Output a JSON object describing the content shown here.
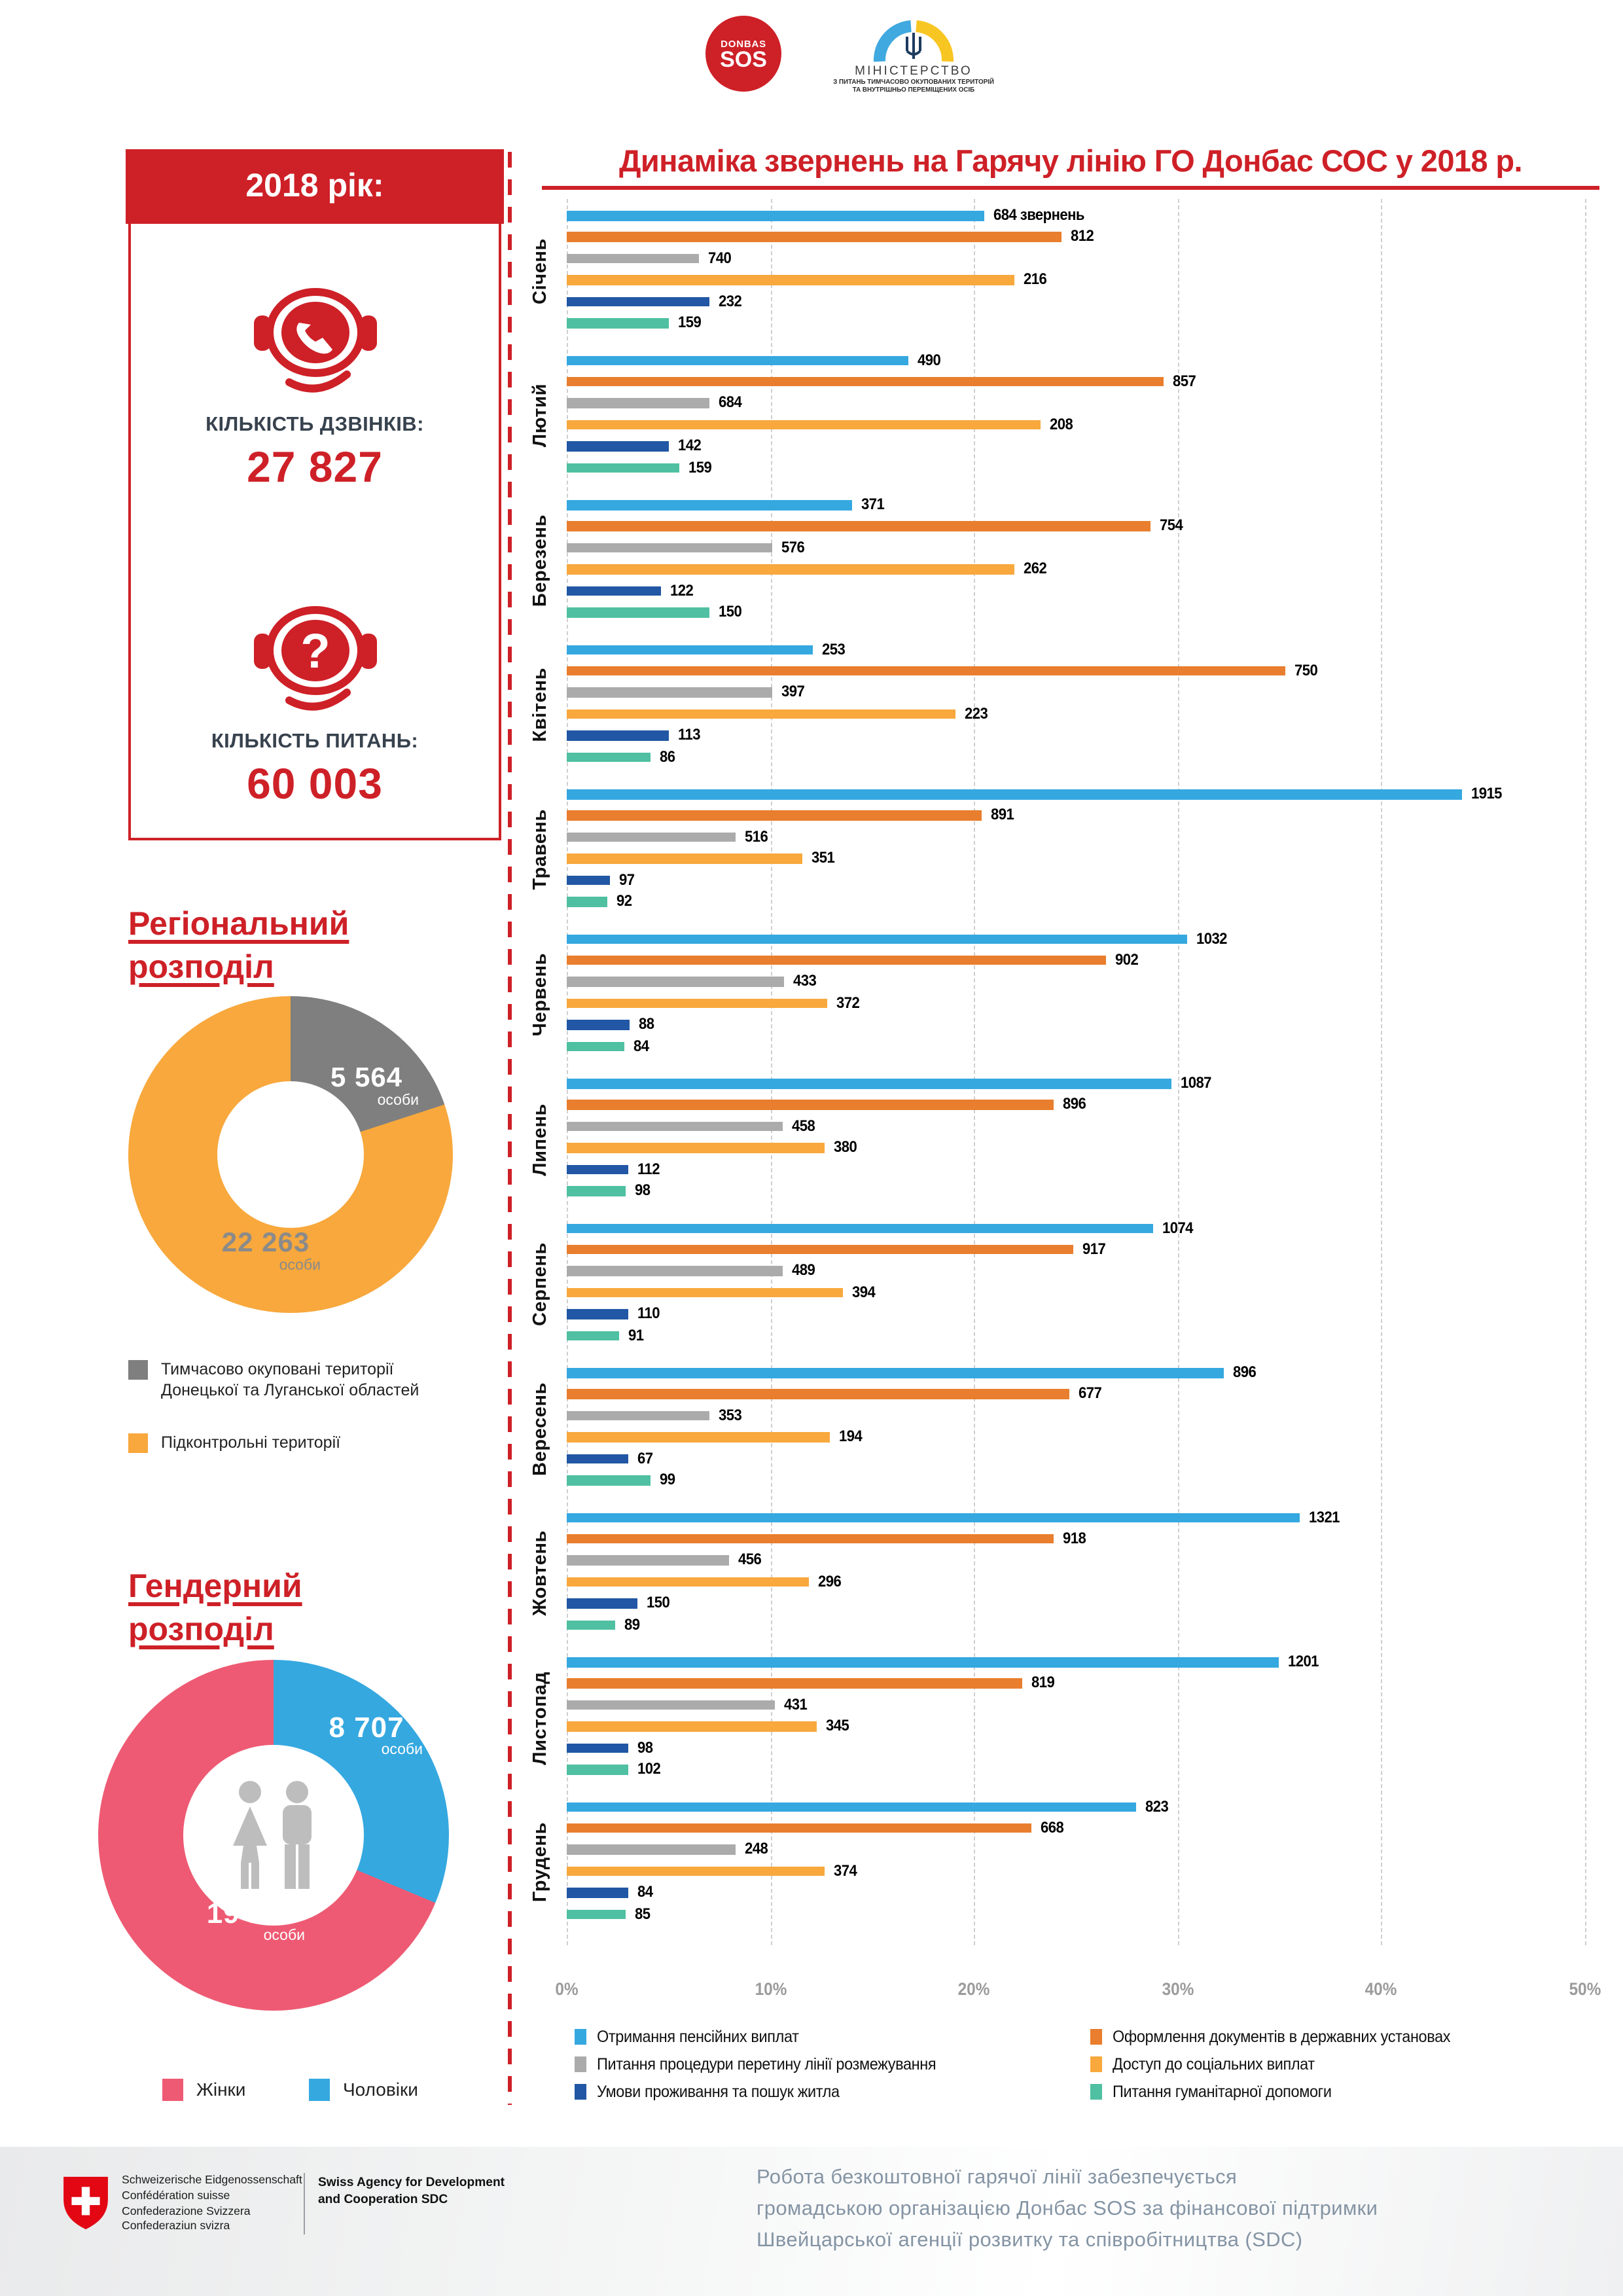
{
  "header": {
    "donbas_logo": {
      "top": "DONBAS",
      "bottom": "SOS"
    },
    "ministry_logo": {
      "line1": "МІНІСТЕРСТВО",
      "line2": "З ПИТАНЬ ТИМЧАСОВО ОКУПОВАНИХ ТЕРИТОРІЙ",
      "line3": "ТА ВНУТРІШНЬО ПЕРЕМІЩЕНИХ ОСІБ"
    }
  },
  "stats": {
    "box_title": "2018 рік:",
    "calls_label": "КІЛЬКІСТЬ ДЗВІНКІВ:",
    "calls_value": "27 827",
    "questions_label": "КІЛЬКІСТЬ ПИТАНЬ:",
    "questions_value": "60 003"
  },
  "chart_data": [
    {
      "type": "bar",
      "orientation": "horizontal",
      "title": "Динаміка звернень на Гарячу лінію ГО Донбас СОС у 2018 р.",
      "x_axis": {
        "unit": "%",
        "range": [
          0,
          50
        ],
        "ticks": [
          "0%",
          "10%",
          "20%",
          "30%",
          "40%",
          "50%"
        ],
        "gridlines": "dashed"
      },
      "first_bar_value_suffix": "звернень",
      "series": [
        {
          "name": "Отримання пенсійних виплат",
          "color": "#35A8E0"
        },
        {
          "name": "Оформлення документів в державних установах",
          "color": "#E87E2E"
        },
        {
          "name": "Питання процедури перетину лінії розмежування",
          "color": "#ABABAB"
        },
        {
          "name": "Доступ до соціальних виплат",
          "color": "#F8A83C"
        },
        {
          "name": "Умови проживання та пошук житла",
          "color": "#2157A4"
        },
        {
          "name": "Питання гуманітарної допомоги",
          "color": "#4FC0A2"
        }
      ],
      "legend_columns": [
        [
          0,
          2,
          4
        ],
        [
          1,
          3,
          5
        ]
      ],
      "months": [
        {
          "name": "Січень",
          "values": [
            684,
            812,
            740,
            216,
            232,
            159
          ],
          "pct": [
            20.5,
            24.3,
            6.5,
            22.0,
            7.0,
            5.0
          ]
        },
        {
          "name": "Лютий",
          "values": [
            490,
            857,
            684,
            208,
            142,
            159
          ],
          "pct": [
            16.8,
            29.3,
            7.0,
            23.3,
            5.0,
            5.5
          ]
        },
        {
          "name": "Березень",
          "values": [
            371,
            754,
            576,
            262,
            122,
            150
          ],
          "pct": [
            14.0,
            28.7,
            10.1,
            22.0,
            4.6,
            7.0
          ]
        },
        {
          "name": "Квітень",
          "values": [
            253,
            750,
            397,
            223,
            113,
            86
          ],
          "pct": [
            12.1,
            35.3,
            10.1,
            19.1,
            5.0,
            4.1
          ]
        },
        {
          "name": "Травень",
          "values": [
            1915,
            891,
            516,
            351,
            97,
            92
          ],
          "pct": [
            44.0,
            20.4,
            8.3,
            11.6,
            2.1,
            2.0
          ]
        },
        {
          "name": "Червень",
          "values": [
            1032,
            902,
            433,
            372,
            88,
            84
          ],
          "pct": [
            30.5,
            26.5,
            10.7,
            12.8,
            3.1,
            2.8
          ]
        },
        {
          "name": "Липень",
          "values": [
            1087,
            896,
            458,
            380,
            112,
            98
          ],
          "pct": [
            29.7,
            23.9,
            10.6,
            12.7,
            3.0,
            2.9
          ]
        },
        {
          "name": "Серпень",
          "values": [
            1074,
            917,
            489,
            394,
            110,
            91
          ],
          "pct": [
            28.8,
            24.9,
            10.6,
            13.6,
            3.0,
            2.6
          ]
        },
        {
          "name": "Вересень",
          "values": [
            896,
            677,
            353,
            194,
            67,
            99
          ],
          "pct": [
            32.3,
            24.7,
            7.0,
            12.9,
            3.0,
            4.1
          ]
        },
        {
          "name": "Жовтень",
          "values": [
            1321,
            918,
            456,
            296,
            150,
            89
          ],
          "pct": [
            36.0,
            23.9,
            8.0,
            11.9,
            3.5,
            2.4
          ]
        },
        {
          "name": "Листопад",
          "values": [
            1201,
            819,
            431,
            345,
            98,
            102
          ],
          "pct": [
            35.0,
            22.4,
            10.2,
            12.3,
            3.0,
            3.0
          ]
        },
        {
          "name": "Грудень",
          "values": [
            823,
            668,
            248,
            374,
            84,
            85
          ],
          "pct": [
            28.0,
            22.8,
            8.3,
            12.7,
            3.0,
            2.9
          ]
        }
      ]
    },
    {
      "type": "donut",
      "title_lines": [
        "Регіональний",
        "розподіл"
      ],
      "slices": [
        {
          "label": "Тимчасово окуповані території Донецької та Луганської областей",
          "value": "5 564",
          "unit": "особи",
          "pct": 20.0,
          "color": "#7F7F7F"
        },
        {
          "label": "Підконтрольні території",
          "value": "22 263",
          "unit": "особи",
          "pct": 80.0,
          "color": "#F8A83C"
        }
      ]
    },
    {
      "type": "donut",
      "title_lines": [
        "Гендерний",
        "розподіл"
      ],
      "slices": [
        {
          "label": "Чоловіки",
          "value": "8 707",
          "unit": "особи",
          "pct": 31.3,
          "color": "#35A8E0"
        },
        {
          "label": "Жінки",
          "value": "19 120",
          "unit": "особи",
          "pct": 68.7,
          "color": "#EE5A73"
        }
      ]
    }
  ],
  "footer": {
    "swiss_lines": [
      "Schweizerische Eidgenossenschaft",
      "Confédération suisse",
      "Confederazione Svizzera",
      "Confederaziun svizra"
    ],
    "sdc_line1": "Swiss Agency for Development",
    "sdc_line2": "and Cooperation SDC",
    "funding_lines": [
      "Робота безкоштовної гарячої лінії забезпечується",
      "громадською організацією Донбас SOS за фінансової підтримки",
      "Швейцарської агенції розвитку та співробітництва (SDC)"
    ]
  }
}
